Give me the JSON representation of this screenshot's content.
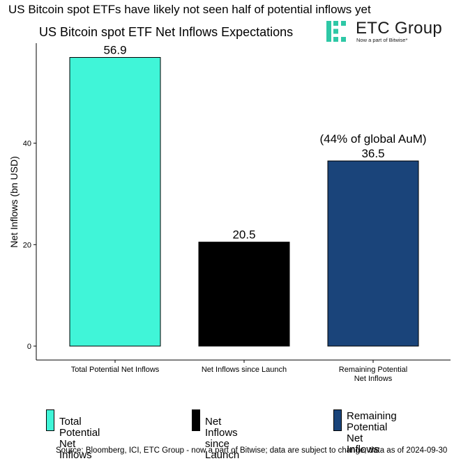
{
  "headline": "US Bitcoin spot ETFs have likely not seen half of potential inflows yet",
  "logo": {
    "name": "ETC Group",
    "tagline": "Now a part of Bitwise*"
  },
  "chart_data": {
    "type": "bar",
    "title": "US Bitcoin spot ETF Net Inflows Expectations",
    "ylabel": "Net Inflows (bn USD)",
    "xlabel": "",
    "ylim": [
      0,
      60
    ],
    "yticks": [
      0,
      20,
      40
    ],
    "grid": false,
    "legend_position": "bottom",
    "categories": [
      "Total Potential Net Inflows",
      "Net Inflows since Launch",
      "Remaining Potential\nNet Inflows"
    ],
    "values": [
      56.9,
      20.5,
      36.5
    ],
    "value_labels": [
      "56.9",
      "20.5",
      "36.5"
    ],
    "colors": [
      "#40F5D8",
      "#000000",
      "#1A447A"
    ],
    "annotations": [
      {
        "category_index": 2,
        "text": "(44% of global AuM)"
      }
    ],
    "legend": [
      "Total Potential Net Inflows",
      "Net Inflows since Launch",
      "Remaining Potential\n Net Inflows"
    ]
  },
  "source": "Source: Bloomberg, ICI, ETC Group - now a part of Bitwise; data are subject to change; data as of 2024-09-30"
}
